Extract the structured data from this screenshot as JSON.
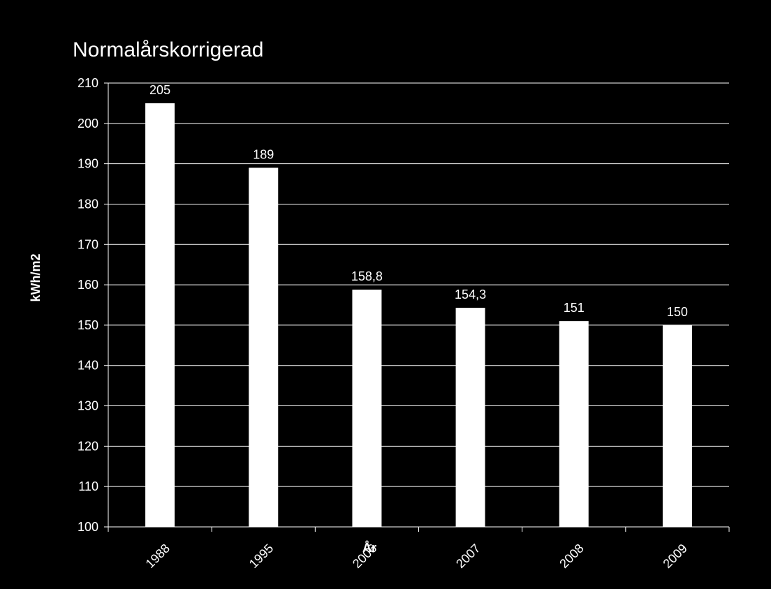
{
  "chart_data": {
    "type": "bar",
    "title": "Normalårskorrigerad",
    "xlabel": "År",
    "ylabel": "kWh/m2",
    "categories": [
      "1988",
      "1995",
      "2006",
      "2007",
      "2008",
      "2009"
    ],
    "values": [
      205,
      189,
      158.8,
      154.3,
      151,
      150
    ],
    "data_labels": [
      "205",
      "189",
      "158,8",
      "154,3",
      "151",
      "150"
    ],
    "ylim": [
      100,
      210
    ],
    "yticks": [
      100,
      110,
      120,
      130,
      140,
      150,
      160,
      170,
      180,
      190,
      200,
      210
    ],
    "grid": true,
    "legend": false,
    "colors": {
      "background": "#000000",
      "bar": "#ffffff",
      "text": "#ffffff",
      "grid": "#ffffff"
    }
  }
}
